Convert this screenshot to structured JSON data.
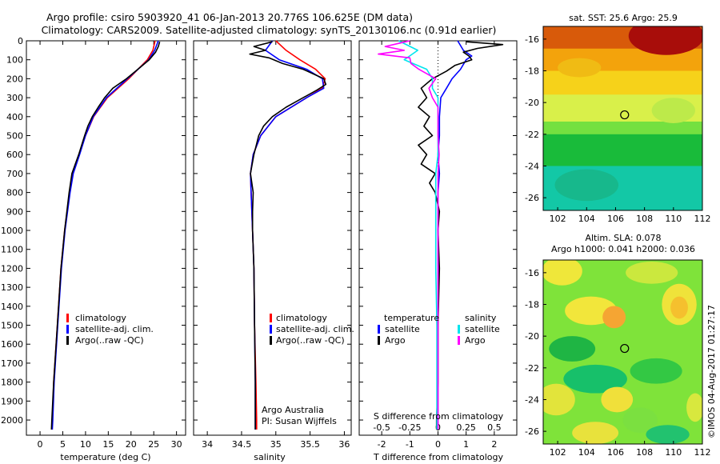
{
  "header": {
    "line1": "Argo profile: csiro 5903920_41 06-Jan-2013 20.776S 106.625E (DM data)",
    "line2": "Climatology: CARS2009. Satellite-adjusted climatology: synTS_20130106.nc (0.91d earlier)"
  },
  "colors": {
    "climatology": "#ff0000",
    "satellite": "#0000ff",
    "argo": "#000000",
    "satellite_salinity": "#00e5ee",
    "argo_salinity": "#ff00ff"
  },
  "chart_data": [
    {
      "type": "line",
      "name": "temperature-profile",
      "xlabel": "temperature (deg C)",
      "ylabel": "",
      "xlim": [
        -3,
        32
      ],
      "ylim": [
        2080,
        0
      ],
      "xticks": [
        0,
        5,
        10,
        15,
        20,
        25,
        30
      ],
      "yticks": [
        0,
        100,
        200,
        300,
        400,
        500,
        600,
        700,
        800,
        900,
        1000,
        1100,
        1200,
        1300,
        1400,
        1500,
        1600,
        1700,
        1800,
        1900,
        2000
      ],
      "legend": {
        "position": "bottom-center",
        "entries": [
          "climatology",
          "satellite-adj. clim.",
          "Argo(..raw -QC)"
        ]
      },
      "series": [
        {
          "name": "climatology",
          "color": "#ff0000",
          "depth": [
            0,
            50,
            100,
            200,
            300,
            400,
            500,
            600,
            700,
            800,
            1000,
            1200,
            1500,
            1800,
            2000,
            2050
          ],
          "values": [
            25.3,
            24.8,
            23.6,
            19.5,
            14.8,
            11.8,
            10.0,
            8.6,
            7.2,
            6.5,
            5.4,
            4.6,
            3.8,
            3.0,
            2.7,
            2.6
          ]
        },
        {
          "name": "satellite-adj. clim.",
          "color": "#0000ff",
          "depth": [
            0,
            50,
            100,
            200,
            300,
            400,
            500,
            600,
            700,
            800,
            1000,
            1200,
            1500,
            1800,
            2000,
            2050
          ],
          "values": [
            26.0,
            25.2,
            23.9,
            19.2,
            14.6,
            11.7,
            10.0,
            8.7,
            7.3,
            6.6,
            5.5,
            4.7,
            3.9,
            3.1,
            2.8,
            2.7
          ]
        },
        {
          "name": "Argo(..raw -QC)",
          "color": "#000000",
          "depth": [
            5,
            30,
            60,
            100,
            150,
            200,
            250,
            300,
            350,
            400,
            450,
            500,
            600,
            700,
            800,
            1000,
            1200,
            1500,
            1800,
            2000,
            2050
          ],
          "values": [
            26.3,
            26.0,
            25.4,
            24.0,
            21.5,
            19.0,
            16.0,
            14.2,
            12.8,
            11.5,
            10.5,
            9.8,
            8.5,
            7.0,
            6.4,
            5.4,
            4.6,
            3.8,
            3.0,
            2.6,
            2.5
          ]
        }
      ]
    },
    {
      "type": "line",
      "name": "salinity-profile",
      "xlabel": "salinity",
      "ylabel": "",
      "xlim": [
        33.8,
        36.1
      ],
      "ylim": [
        2080,
        0
      ],
      "xticks": [
        34,
        34.5,
        35,
        35.5,
        36
      ],
      "xticklabels": [
        "34",
        "34.5",
        "35",
        "35.5",
        "36"
      ],
      "legend": {
        "position": "bottom-right",
        "entries": [
          "climatology",
          "satellite-adj. clim.",
          "Argo(..raw -QC)"
        ]
      },
      "series": [
        {
          "name": "climatology",
          "color": "#ff0000",
          "depth": [
            0,
            50,
            100,
            150,
            200,
            250,
            300,
            400,
            500,
            600,
            700,
            800,
            1000,
            1200,
            1500,
            1800,
            2000,
            2050
          ],
          "values": [
            35.0,
            35.15,
            35.35,
            35.58,
            35.72,
            35.68,
            35.45,
            35.0,
            34.78,
            34.67,
            34.63,
            34.64,
            34.66,
            34.68,
            34.69,
            34.71,
            34.72,
            34.72
          ]
        },
        {
          "name": "satellite-adj. clim.",
          "color": "#0000ff",
          "depth": [
            0,
            50,
            100,
            150,
            200,
            250,
            300,
            400,
            500,
            600,
            700,
            800,
            1000,
            1200,
            1500,
            1800,
            2000,
            2050
          ],
          "values": [
            34.95,
            34.85,
            35.05,
            35.45,
            35.68,
            35.7,
            35.45,
            35.0,
            34.78,
            34.67,
            34.63,
            34.64,
            34.66,
            34.68,
            34.69,
            34.7,
            34.7,
            34.7
          ]
        },
        {
          "name": "Argo(..raw -QC)",
          "color": "#000000",
          "depth": [
            5,
            30,
            50,
            70,
            90,
            120,
            150,
            200,
            230,
            260,
            300,
            350,
            400,
            450,
            500,
            600,
            700,
            750,
            800,
            900,
            1000,
            1200,
            1500,
            1800,
            2000,
            2050
          ],
          "values": [
            34.95,
            34.68,
            34.85,
            34.62,
            34.9,
            35.1,
            35.4,
            35.7,
            35.73,
            35.6,
            35.4,
            35.15,
            34.95,
            34.82,
            34.75,
            34.68,
            34.63,
            34.65,
            34.67,
            34.66,
            34.66,
            34.68,
            34.69,
            34.7,
            34.7,
            34.7
          ]
        }
      ]
    },
    {
      "type": "line",
      "name": "difference-profile",
      "xlabel": "T difference from climatology",
      "top_xlabel": "S difference from climatology",
      "xlim": [
        -2.8,
        2.8
      ],
      "ylim": [
        2080,
        0
      ],
      "xticks": [
        -2,
        -1,
        0,
        1,
        2
      ],
      "top_ticks": [
        -0.5,
        -0.25,
        0,
        0.25,
        0.5
      ],
      "top_ticklabels": [
        "-0.5",
        "-0.25",
        "0",
        "0.25",
        "0.5"
      ],
      "zero_line": "dotted",
      "legend": {
        "position": "center",
        "temperature_title": "temperature",
        "salinity_title": "salinity",
        "temperature_entries": [
          "satellite",
          "Argo"
        ],
        "salinity_entries": [
          "satellite",
          "Argo"
        ]
      },
      "series": [
        {
          "name": "temperature satellite",
          "color": "#0000ff",
          "depth": [
            0,
            50,
            80,
            100,
            150,
            200,
            250,
            300,
            400,
            500,
            600,
            700,
            800,
            900,
            1000,
            1500,
            2000,
            2050
          ],
          "values": [
            0.7,
            0.9,
            1.2,
            1.0,
            0.8,
            0.5,
            0.3,
            0.1,
            0.05,
            0.05,
            0.0,
            0.05,
            0.0,
            0.0,
            0.0,
            0.0,
            0.0,
            0.0
          ]
        },
        {
          "name": "temperature Argo",
          "color": "#000000",
          "depth": [
            5,
            20,
            40,
            60,
            80,
            100,
            130,
            160,
            200,
            250,
            300,
            350,
            400,
            450,
            500,
            550,
            600,
            650,
            700,
            750,
            800,
            900,
            1000,
            1200,
            1500,
            1800,
            2000,
            2050
          ],
          "values": [
            1.0,
            2.3,
            1.4,
            0.9,
            1.1,
            1.2,
            0.6,
            0.3,
            -0.2,
            -0.6,
            -0.4,
            -0.7,
            -0.3,
            -0.5,
            -0.2,
            -0.7,
            -0.4,
            -0.6,
            -0.1,
            -0.3,
            -0.1,
            0.05,
            0.0,
            0.05,
            0.0,
            0.0,
            -0.05,
            -0.05
          ]
        },
        {
          "name": "salinity satellite",
          "color": "#00e5ee",
          "depth": [
            0,
            50,
            100,
            150,
            200,
            250,
            300,
            350,
            400,
            500,
            600,
            700,
            800,
            900,
            1000,
            1200,
            1500,
            2000,
            2050
          ],
          "values": [
            -0.35,
            -0.18,
            -0.3,
            -0.1,
            -0.05,
            -0.05,
            0.0,
            0.0,
            0.0,
            0.0,
            0.0,
            -0.02,
            -0.02,
            -0.02,
            -0.02,
            -0.02,
            -0.01,
            -0.01,
            -0.01
          ]
        },
        {
          "name": "salinity Argo",
          "color": "#ff00ff",
          "depth": [
            0,
            30,
            50,
            70,
            90,
            120,
            150,
            200,
            250,
            300,
            350,
            400,
            500,
            600,
            700,
            800,
            1000,
            1500,
            2000,
            2050
          ],
          "values": [
            -0.25,
            -0.47,
            -0.3,
            -0.53,
            -0.25,
            -0.24,
            -0.17,
            -0.02,
            -0.08,
            -0.05,
            0.0,
            0.0,
            0.0,
            0.01,
            0.0,
            0.0,
            0.0,
            0.0,
            0.0,
            0.0
          ]
        }
      ]
    },
    {
      "type": "heatmap",
      "name": "sst-map",
      "title": "sat. SST: 25.6  Argo: 25.9",
      "xlim": [
        101,
        112
      ],
      "ylim": [
        -26.8,
        -15.2
      ],
      "xticks": [
        102,
        104,
        106,
        108,
        110,
        112
      ],
      "yticks": [
        -16,
        -18,
        -20,
        -22,
        -24,
        -26
      ],
      "marker": {
        "lon": 106.625,
        "lat": -20.776
      },
      "bands": [
        {
          "from_lat": -15.2,
          "to_lat": -16.6,
          "color": "#d85a0a"
        },
        {
          "from_lat": -16.6,
          "to_lat": -18.0,
          "color": "#f3a30c"
        },
        {
          "from_lat": -18.0,
          "to_lat": -19.5,
          "color": "#f6d21a"
        },
        {
          "from_lat": -19.5,
          "to_lat": -21.2,
          "color": "#d9f04a"
        },
        {
          "from_lat": -21.2,
          "to_lat": -22.0,
          "color": "#74e040"
        },
        {
          "from_lat": -22.0,
          "to_lat": -24.0,
          "color": "#19bb3a"
        },
        {
          "from_lat": -24.0,
          "to_lat": -26.8,
          "color": "#13c8a6"
        }
      ],
      "patches": [
        {
          "lon": 109.5,
          "lat": -15.8,
          "rlon": 2.6,
          "rlat": 1.2,
          "color": "#a80d0a"
        },
        {
          "lon": 103.5,
          "lat": -17.8,
          "rlon": 1.5,
          "rlat": 0.6,
          "color": "#f0bb14"
        },
        {
          "lon": 110.0,
          "lat": -20.5,
          "rlon": 1.5,
          "rlat": 0.8,
          "color": "#bdea4a"
        },
        {
          "lon": 104.0,
          "lat": -25.2,
          "rlon": 2.2,
          "rlat": 1.0,
          "color": "#17b88c"
        }
      ]
    },
    {
      "type": "heatmap",
      "name": "sla-map",
      "title_line1": "Altim. SLA: 0.078",
      "title_line2": "Argo h1000: 0.041 h2000: 0.036",
      "xlim": [
        101,
        112
      ],
      "ylim": [
        -26.8,
        -15.2
      ],
      "xticks": [
        102,
        104,
        106,
        108,
        110,
        112
      ],
      "yticks": [
        -16,
        -18,
        -20,
        -22,
        -24,
        -26
      ],
      "marker": {
        "lon": 106.625,
        "lat": -20.776
      },
      "background": "#7fe33a",
      "patches": [
        {
          "lon": 102.3,
          "lat": -15.9,
          "rlon": 1.4,
          "rlat": 0.9,
          "color": "#efe73a"
        },
        {
          "lon": 108.5,
          "lat": -16.0,
          "rlon": 1.8,
          "rlat": 0.7,
          "color": "#cbe83e"
        },
        {
          "lon": 110.4,
          "lat": -18.0,
          "rlon": 1.2,
          "rlat": 1.3,
          "color": "#efe33a"
        },
        {
          "lon": 110.4,
          "lat": -18.2,
          "rlon": 0.6,
          "rlat": 0.7,
          "color": "#f5c02e"
        },
        {
          "lon": 104.3,
          "lat": -18.4,
          "rlon": 1.8,
          "rlat": 0.9,
          "color": "#f2e63b"
        },
        {
          "lon": 105.9,
          "lat": -18.8,
          "rlon": 0.8,
          "rlat": 0.7,
          "color": "#f5a533"
        },
        {
          "lon": 103.0,
          "lat": -20.8,
          "rlon": 1.6,
          "rlat": 0.8,
          "color": "#1fb544"
        },
        {
          "lon": 104.6,
          "lat": -22.7,
          "rlon": 2.2,
          "rlat": 0.9,
          "color": "#17c06a"
        },
        {
          "lon": 108.8,
          "lat": -22.2,
          "rlon": 1.8,
          "rlat": 0.8,
          "color": "#33c844"
        },
        {
          "lon": 101.9,
          "lat": -24.0,
          "rlon": 1.3,
          "rlat": 1.0,
          "color": "#e2e43b"
        },
        {
          "lon": 106.1,
          "lat": -24.0,
          "rlon": 1.1,
          "rlat": 0.8,
          "color": "#f0e03a"
        },
        {
          "lon": 107.7,
          "lat": -25.3,
          "rlon": 1.2,
          "rlat": 0.8,
          "color": "#7be040"
        },
        {
          "lon": 104.6,
          "lat": -26.1,
          "rlon": 1.6,
          "rlat": 0.7,
          "color": "#e8e23c"
        },
        {
          "lon": 109.6,
          "lat": -26.2,
          "rlon": 1.5,
          "rlat": 0.6,
          "color": "#22c26f"
        },
        {
          "lon": 111.5,
          "lat": -24.5,
          "rlon": 0.6,
          "rlat": 0.9,
          "color": "#d8e83e"
        }
      ]
    }
  ],
  "annotations": {
    "credit_line1": "Argo Australia",
    "credit_line2": "PI: Susan Wijffels",
    "imos_stamp": "©IMOS 04-Aug-2017 01:27:17"
  }
}
